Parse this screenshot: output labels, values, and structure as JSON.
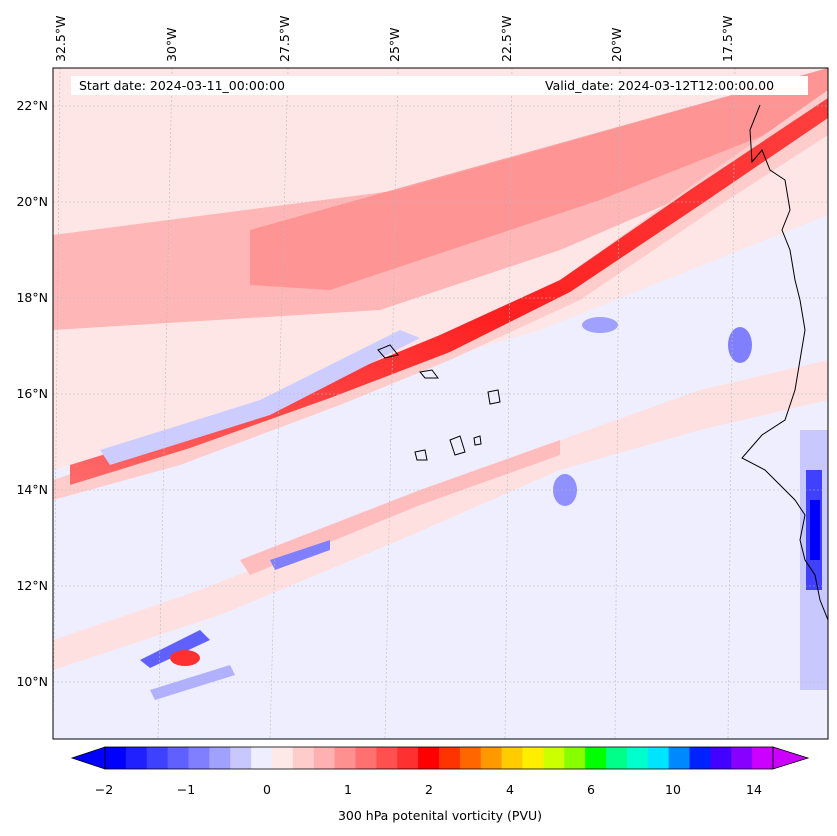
{
  "map": {
    "start_date": "Start date: 2024-03-11_00:00:00",
    "valid_date": "Valid_date: 2024-03-12T12:00:00.00",
    "longitude_labels": [
      "32.5°W",
      "30°W",
      "27.5°W",
      "25°W",
      "22.5°W",
      "20°W",
      "17.5°W"
    ],
    "latitude_labels": [
      "22°N",
      "20°N",
      "18°N",
      "16°N",
      "14°N",
      "12°N",
      "10°N"
    ],
    "gridlines": "dashed light gray",
    "coastline_color": "#000000"
  },
  "colorbar": {
    "title": "300 hPa potenital vorticity (PVU)",
    "tick_labels": [
      "−2",
      "−1",
      "0",
      "1",
      "2",
      "4",
      "6",
      "10",
      "14"
    ],
    "colors": [
      "#0000ff",
      "#2020ff",
      "#4040ff",
      "#6060ff",
      "#8080ff",
      "#a0a0ff",
      "#c8c8ff",
      "#eeeeff",
      "#ffe8e8",
      "#ffcccc",
      "#ffb0b0",
      "#ff9090",
      "#ff7070",
      "#ff5050",
      "#ff3030",
      "#ff0000",
      "#ff3300",
      "#ff6600",
      "#ff9900",
      "#ffcc00",
      "#ffee00",
      "#ccff00",
      "#88ff00",
      "#00ff00",
      "#00ff88",
      "#00ffcc",
      "#00e5ff",
      "#0088ff",
      "#0022ff",
      "#4400ff",
      "#8800ff",
      "#cc00ff"
    ],
    "extend": "both"
  }
}
